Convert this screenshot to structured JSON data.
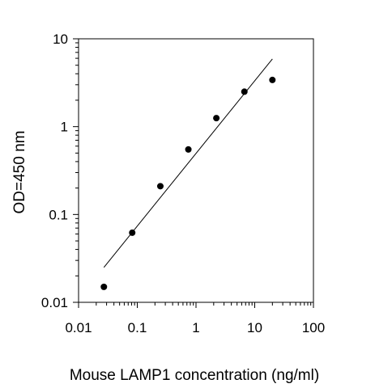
{
  "chart_data": {
    "type": "scatter",
    "title": "",
    "xlabel": "Mouse LAMP1 concentration (ng/ml)",
    "ylabel": "OD=450 nm",
    "x_scale": "log",
    "y_scale": "log",
    "xlim": [
      0.01,
      100
    ],
    "ylim": [
      0.01,
      10
    ],
    "x_ticks": [
      "0.01",
      "0.1",
      "1",
      "10",
      "100"
    ],
    "y_ticks": [
      "0.01",
      "0.1",
      "1",
      "10"
    ],
    "grid": false,
    "legend": "none",
    "series": [
      {
        "x": [
          0.027,
          0.082,
          0.247,
          0.741,
          2.22,
          6.67,
          20
        ],
        "y": [
          0.015,
          0.062,
          0.21,
          0.55,
          1.25,
          2.5,
          3.4
        ]
      }
    ],
    "fit_line": {
      "x": [
        0.027,
        20
      ],
      "y": [
        0.025,
        5.9
      ]
    },
    "colors": {
      "marker": "#000000",
      "line": "#000000",
      "axis": "#000000"
    }
  }
}
